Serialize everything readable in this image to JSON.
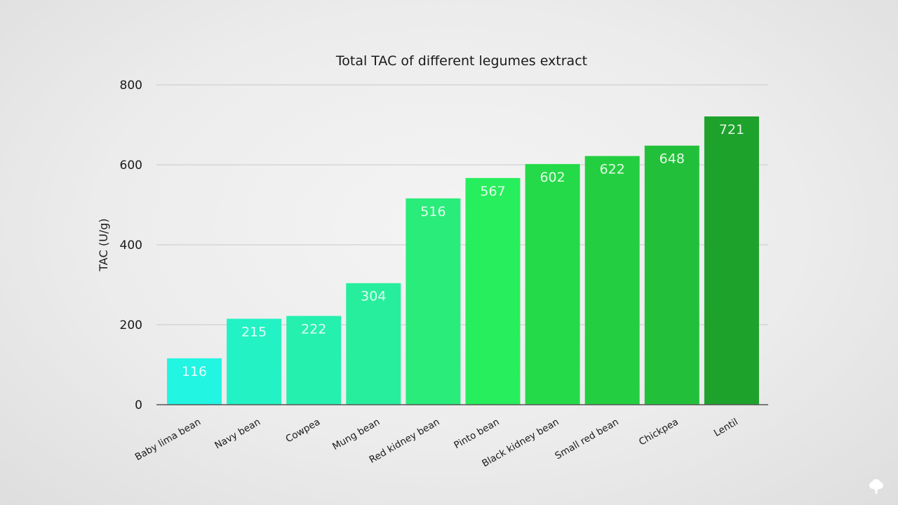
{
  "chart_data": {
    "type": "bar",
    "title": "Total TAC of different legumes extract",
    "xlabel": "",
    "ylabel": "TAC (U/g)",
    "ylim": [
      0,
      800
    ],
    "yticks": [
      0,
      200,
      400,
      600,
      800
    ],
    "grid": true,
    "legend": "none",
    "categories": [
      "Baby lima bean",
      "Navy bean",
      "Cowpea",
      "Mung bean",
      "Red kidney bean",
      "Pinto bean",
      "Black kidney bean",
      "Small red bean",
      "Chickpea",
      "Lentil"
    ],
    "values": [
      116,
      215,
      222,
      304,
      516,
      567,
      602,
      622,
      648,
      721
    ],
    "data_labels": [
      "116",
      "215",
      "222",
      "304",
      "516",
      "567",
      "602",
      "622",
      "648",
      "721"
    ],
    "bar_colors": [
      "#22f5e2",
      "#23f2c4",
      "#25f0ae",
      "#27ee9c",
      "#29ec7a",
      "#27ee5c",
      "#24da48",
      "#23cf40",
      "#22c03a",
      "#1da22c"
    ]
  },
  "logo": {
    "icon": "tree-icon",
    "color": "#ffffff"
  }
}
